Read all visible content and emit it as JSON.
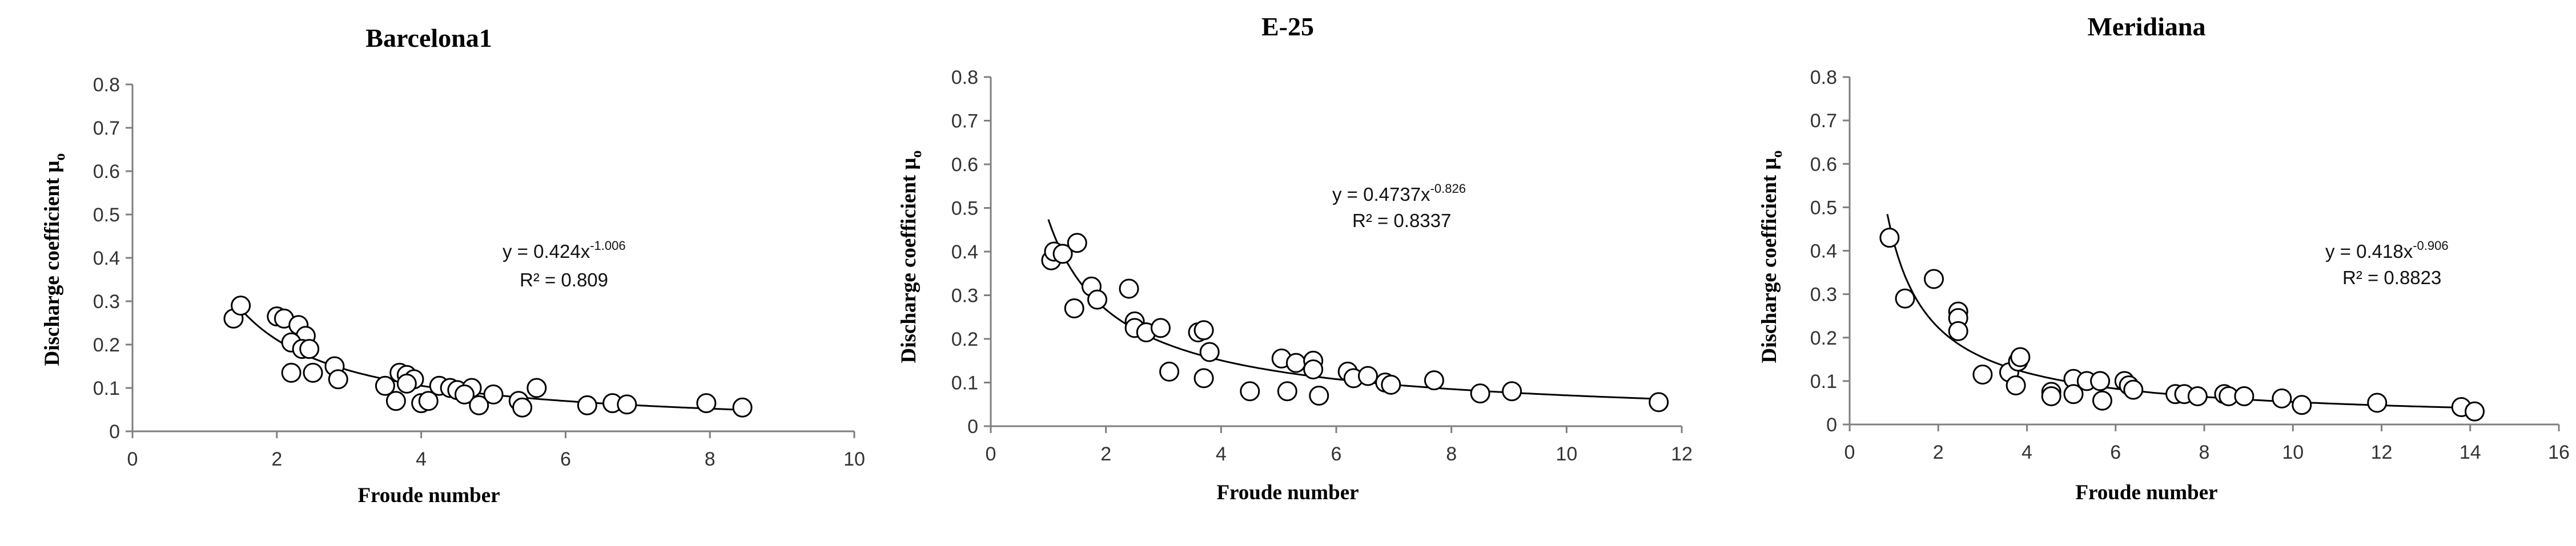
{
  "chart_data": [
    {
      "type": "scatter",
      "title": "Barcelona1",
      "xlabel": "Froude number",
      "ylabel_main": "Discharge coefficient μ",
      "ylabel_sub": "o",
      "xlim": [
        0,
        10
      ],
      "ylim": [
        0,
        0.8
      ],
      "xticks": [
        0,
        2,
        4,
        6,
        8,
        10
      ],
      "xtick_labels": [
        "0",
        "2",
        "4",
        "6",
        "8",
        "10"
      ],
      "yticks": [
        0,
        0.1,
        0.2,
        0.3,
        0.4,
        0.5,
        0.6,
        0.7,
        0.8
      ],
      "ytick_labels": [
        "0",
        "0.1",
        "0.2",
        "0.3",
        "0.4",
        "0.5",
        "0.6",
        "0.7",
        "0.8"
      ],
      "grid": false,
      "fit": {
        "type": "power",
        "a": 0.424,
        "b": -1.006,
        "x_range": [
          1.4,
          8.5
        ]
      },
      "equation": {
        "main": "y = 0.424x",
        "exp": "-1.006"
      },
      "r2_label": "R² = 0.809",
      "points": [
        {
          "x": 1.4,
          "y": 0.26
        },
        {
          "x": 1.5,
          "y": 0.29
        },
        {
          "x": 2.0,
          "y": 0.265
        },
        {
          "x": 2.1,
          "y": 0.26
        },
        {
          "x": 2.3,
          "y": 0.245
        },
        {
          "x": 2.4,
          "y": 0.22
        },
        {
          "x": 2.2,
          "y": 0.205
        },
        {
          "x": 2.35,
          "y": 0.19
        },
        {
          "x": 2.45,
          "y": 0.19
        },
        {
          "x": 2.2,
          "y": 0.135
        },
        {
          "x": 2.5,
          "y": 0.135
        },
        {
          "x": 2.8,
          "y": 0.15
        },
        {
          "x": 2.85,
          "y": 0.12
        },
        {
          "x": 3.5,
          "y": 0.105
        },
        {
          "x": 3.7,
          "y": 0.135
        },
        {
          "x": 3.8,
          "y": 0.13
        },
        {
          "x": 3.9,
          "y": 0.12
        },
        {
          "x": 3.8,
          "y": 0.11
        },
        {
          "x": 3.65,
          "y": 0.07
        },
        {
          "x": 4.0,
          "y": 0.065
        },
        {
          "x": 4.1,
          "y": 0.07
        },
        {
          "x": 4.25,
          "y": 0.105
        },
        {
          "x": 4.4,
          "y": 0.1
        },
        {
          "x": 4.5,
          "y": 0.095
        },
        {
          "x": 4.7,
          "y": 0.1
        },
        {
          "x": 4.6,
          "y": 0.085
        },
        {
          "x": 4.8,
          "y": 0.06
        },
        {
          "x": 5.0,
          "y": 0.085
        },
        {
          "x": 5.35,
          "y": 0.07
        },
        {
          "x": 5.4,
          "y": 0.055
        },
        {
          "x": 5.6,
          "y": 0.1
        },
        {
          "x": 6.3,
          "y": 0.06
        },
        {
          "x": 6.65,
          "y": 0.065
        },
        {
          "x": 6.85,
          "y": 0.062
        },
        {
          "x": 7.95,
          "y": 0.065
        },
        {
          "x": 8.45,
          "y": 0.055
        }
      ]
    },
    {
      "type": "scatter",
      "title": "E-25",
      "xlabel": "Froude number",
      "ylabel_main": "Discharge coefficient μ",
      "ylabel_sub": "o",
      "xlim": [
        0,
        12
      ],
      "ylim": [
        0,
        0.8
      ],
      "xticks": [
        0,
        2,
        4,
        6,
        8,
        10,
        12
      ],
      "xtick_labels": [
        "0",
        "2",
        "4",
        "6",
        "8",
        "10",
        "12"
      ],
      "yticks": [
        0,
        0.1,
        0.2,
        0.3,
        0.4,
        0.5,
        0.6,
        0.7,
        0.8
      ],
      "ytick_labels": [
        "0",
        "0.1",
        "0.2",
        "0.3",
        "0.4",
        "0.5",
        "0.6",
        "0.7",
        "0.8"
      ],
      "grid": false,
      "fit": {
        "type": "power",
        "a": 0.4737,
        "b": -0.826,
        "x_range": [
          1.0,
          11.6
        ]
      },
      "equation": {
        "main": "y = 0.4737x",
        "exp": "-0.826"
      },
      "r2_label": "R² = 0.8337",
      "points": [
        {
          "x": 1.05,
          "y": 0.38
        },
        {
          "x": 1.1,
          "y": 0.4
        },
        {
          "x": 1.25,
          "y": 0.395
        },
        {
          "x": 1.5,
          "y": 0.42
        },
        {
          "x": 1.45,
          "y": 0.27
        },
        {
          "x": 1.75,
          "y": 0.32
        },
        {
          "x": 1.85,
          "y": 0.29
        },
        {
          "x": 2.4,
          "y": 0.315
        },
        {
          "x": 2.5,
          "y": 0.24
        },
        {
          "x": 2.5,
          "y": 0.225
        },
        {
          "x": 2.7,
          "y": 0.215
        },
        {
          "x": 2.95,
          "y": 0.225
        },
        {
          "x": 3.1,
          "y": 0.125
        },
        {
          "x": 3.6,
          "y": 0.215
        },
        {
          "x": 3.7,
          "y": 0.22
        },
        {
          "x": 3.8,
          "y": 0.17
        },
        {
          "x": 3.7,
          "y": 0.11
        },
        {
          "x": 4.5,
          "y": 0.08
        },
        {
          "x": 5.05,
          "y": 0.155
        },
        {
          "x": 5.3,
          "y": 0.145
        },
        {
          "x": 5.6,
          "y": 0.15
        },
        {
          "x": 5.6,
          "y": 0.13
        },
        {
          "x": 5.15,
          "y": 0.08
        },
        {
          "x": 5.7,
          "y": 0.07
        },
        {
          "x": 6.2,
          "y": 0.125
        },
        {
          "x": 6.3,
          "y": 0.11
        },
        {
          "x": 6.55,
          "y": 0.115
        },
        {
          "x": 6.85,
          "y": 0.1
        },
        {
          "x": 6.95,
          "y": 0.095
        },
        {
          "x": 7.7,
          "y": 0.105
        },
        {
          "x": 8.5,
          "y": 0.075
        },
        {
          "x": 9.05,
          "y": 0.08
        },
        {
          "x": 11.6,
          "y": 0.055
        }
      ]
    },
    {
      "type": "scatter",
      "title": "Meridiana",
      "xlabel": "Froude number",
      "ylabel_main": "Discharge coefficient μ",
      "ylabel_sub": "o",
      "xlim": [
        0,
        16
      ],
      "ylim": [
        0,
        0.8
      ],
      "xticks": [
        0,
        2,
        4,
        6,
        8,
        10,
        12,
        14,
        16
      ],
      "xtick_labels": [
        "0",
        "2",
        "4",
        "6",
        "8",
        "10",
        "12",
        "14",
        "16"
      ],
      "yticks": [
        0,
        0.1,
        0.2,
        0.3,
        0.4,
        0.5,
        0.6,
        0.7,
        0.8
      ],
      "ytick_labels": [
        "0",
        "0.1",
        "0.2",
        "0.3",
        "0.4",
        "0.5",
        "0.6",
        "0.7",
        "0.8"
      ],
      "grid": false,
      "fit": {
        "type": "power",
        "a": 0.418,
        "b": -0.906,
        "x_range": [
          0.85,
          14.1
        ]
      },
      "equation": {
        "main": "y = 0.418x",
        "exp": "-0.906"
      },
      "r2_label": "R² = 0.8823",
      "points": [
        {
          "x": 0.9,
          "y": 0.43
        },
        {
          "x": 1.25,
          "y": 0.29
        },
        {
          "x": 1.9,
          "y": 0.335
        },
        {
          "x": 2.45,
          "y": 0.26
        },
        {
          "x": 2.45,
          "y": 0.245
        },
        {
          "x": 2.45,
          "y": 0.215
        },
        {
          "x": 3.0,
          "y": 0.115
        },
        {
          "x": 3.6,
          "y": 0.12
        },
        {
          "x": 3.8,
          "y": 0.145
        },
        {
          "x": 3.85,
          "y": 0.155
        },
        {
          "x": 3.75,
          "y": 0.09
        },
        {
          "x": 4.55,
          "y": 0.075
        },
        {
          "x": 4.55,
          "y": 0.065
        },
        {
          "x": 5.05,
          "y": 0.105
        },
        {
          "x": 5.05,
          "y": 0.07
        },
        {
          "x": 5.35,
          "y": 0.1
        },
        {
          "x": 5.65,
          "y": 0.1
        },
        {
          "x": 5.7,
          "y": 0.055
        },
        {
          "x": 6.2,
          "y": 0.1
        },
        {
          "x": 6.3,
          "y": 0.09
        },
        {
          "x": 6.4,
          "y": 0.08
        },
        {
          "x": 7.35,
          "y": 0.07
        },
        {
          "x": 7.55,
          "y": 0.07
        },
        {
          "x": 7.85,
          "y": 0.065
        },
        {
          "x": 8.45,
          "y": 0.07
        },
        {
          "x": 8.55,
          "y": 0.065
        },
        {
          "x": 8.9,
          "y": 0.065
        },
        {
          "x": 9.75,
          "y": 0.06
        },
        {
          "x": 10.2,
          "y": 0.045
        },
        {
          "x": 11.9,
          "y": 0.05
        },
        {
          "x": 13.8,
          "y": 0.04
        },
        {
          "x": 14.1,
          "y": 0.03
        }
      ]
    }
  ]
}
